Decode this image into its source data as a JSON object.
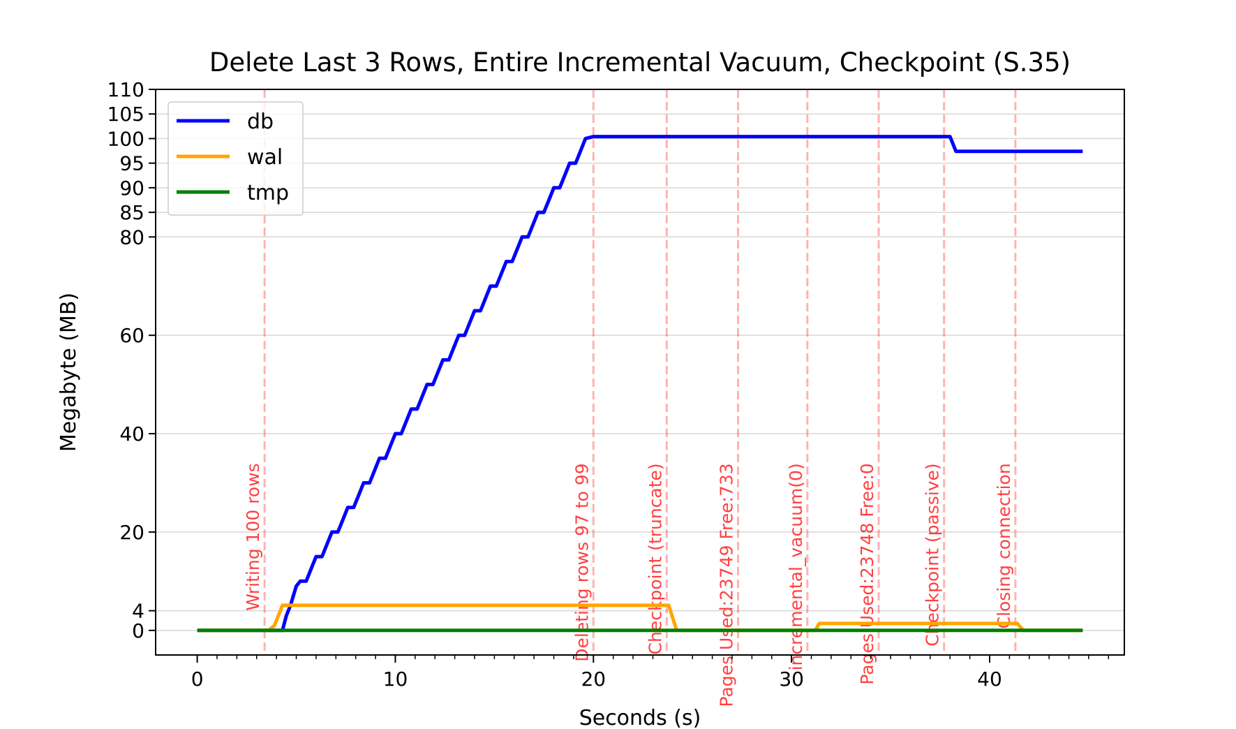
{
  "chart_data": {
    "type": "line",
    "title": "Delete Last 3 Rows, Entire Incremental Vacuum, Checkpoint (S.35)",
    "xlabel": "Seconds (s)",
    "ylabel": "Megabyte (MB)",
    "xlim": [
      -2.1,
      46.8
    ],
    "ylim": [
      -5,
      110
    ],
    "x_ticks": [
      0,
      10,
      20,
      30,
      40
    ],
    "x_tick_labels": [
      "0",
      "10",
      "20",
      "30",
      "40"
    ],
    "x_minor_step": 1,
    "y_ticks": [
      0,
      4,
      20,
      40,
      60,
      80,
      85,
      90,
      95,
      100,
      105,
      110
    ],
    "y_tick_labels": [
      "0",
      "4",
      "20",
      "40",
      "60",
      "80",
      "85",
      "90",
      "95",
      "100",
      "105",
      "110"
    ],
    "grid": "horizontal",
    "legend_position": "top-left",
    "series": [
      {
        "name": "db",
        "color": "#0000ff",
        "points": [
          [
            0,
            0
          ],
          [
            4.3,
            0
          ],
          [
            4.5,
            3
          ],
          [
            4.7,
            5
          ],
          [
            5.0,
            9
          ],
          [
            5.2,
            10
          ],
          [
            5.5,
            10
          ],
          [
            5.8,
            13
          ],
          [
            6.0,
            15
          ],
          [
            6.3,
            15
          ],
          [
            6.6,
            18
          ],
          [
            6.8,
            20
          ],
          [
            7.1,
            20
          ],
          [
            7.4,
            23
          ],
          [
            7.6,
            25
          ],
          [
            7.9,
            25
          ],
          [
            8.2,
            28
          ],
          [
            8.4,
            30
          ],
          [
            8.7,
            30
          ],
          [
            9.0,
            33
          ],
          [
            9.2,
            35
          ],
          [
            9.5,
            35
          ],
          [
            9.8,
            38
          ],
          [
            10.0,
            40
          ],
          [
            10.3,
            40
          ],
          [
            10.6,
            43
          ],
          [
            10.8,
            45
          ],
          [
            11.1,
            45
          ],
          [
            11.4,
            48
          ],
          [
            11.6,
            50
          ],
          [
            11.9,
            50
          ],
          [
            12.2,
            53
          ],
          [
            12.4,
            55
          ],
          [
            12.7,
            55
          ],
          [
            13.0,
            58
          ],
          [
            13.2,
            60
          ],
          [
            13.5,
            60
          ],
          [
            13.8,
            63
          ],
          [
            14.0,
            65
          ],
          [
            14.3,
            65
          ],
          [
            14.6,
            68
          ],
          [
            14.8,
            70
          ],
          [
            15.1,
            70
          ],
          [
            15.4,
            73
          ],
          [
            15.6,
            75
          ],
          [
            15.9,
            75
          ],
          [
            16.2,
            78
          ],
          [
            16.4,
            80
          ],
          [
            16.7,
            80
          ],
          [
            17.0,
            83
          ],
          [
            17.2,
            85
          ],
          [
            17.5,
            85
          ],
          [
            17.8,
            88
          ],
          [
            18.0,
            90
          ],
          [
            18.3,
            90
          ],
          [
            18.6,
            93
          ],
          [
            18.8,
            95
          ],
          [
            19.1,
            95
          ],
          [
            19.4,
            98
          ],
          [
            19.6,
            100
          ],
          [
            20.0,
            100.4
          ],
          [
            38.0,
            100.4
          ],
          [
            38.3,
            97.4
          ],
          [
            44.7,
            97.4
          ]
        ]
      },
      {
        "name": "wal",
        "color": "#ffa500",
        "points": [
          [
            0,
            0
          ],
          [
            3.6,
            0
          ],
          [
            3.9,
            1
          ],
          [
            4.3,
            5.1
          ],
          [
            23.8,
            5.1
          ],
          [
            24.2,
            0
          ],
          [
            31.2,
            0
          ],
          [
            31.4,
            1.4
          ],
          [
            41.4,
            1.4
          ],
          [
            41.7,
            0
          ],
          [
            44.7,
            0
          ]
        ]
      },
      {
        "name": "tmp",
        "color": "#008000",
        "points": [
          [
            0,
            0
          ],
          [
            44.7,
            0
          ]
        ]
      }
    ],
    "annotations": [
      {
        "x": 3.4,
        "label": "Writing 100 rows"
      },
      {
        "x": 20.0,
        "label": "Deleting rows 97 to 99"
      },
      {
        "x": 23.7,
        "label": "Checkpoint (truncate)"
      },
      {
        "x": 27.3,
        "label": "Pages Used:23749 Free:733"
      },
      {
        "x": 30.8,
        "label": "incremental_vacuum(0)"
      },
      {
        "x": 34.4,
        "label": "Pages Used:23748 Free:0"
      },
      {
        "x": 37.7,
        "label": "Checkpoint (passive)"
      },
      {
        "x": 41.3,
        "label": "Closing connection"
      }
    ]
  }
}
